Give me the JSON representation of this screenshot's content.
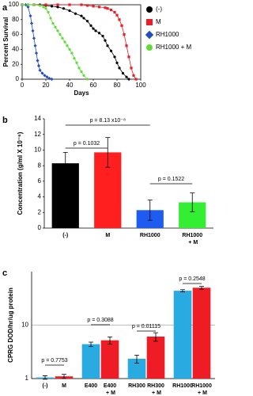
{
  "chart_data": [
    {
      "type": "line",
      "label": "a",
      "y_label": "Percent Survival",
      "x_label": "Days",
      "xlim": [
        0,
        100
      ],
      "xticks": [
        0,
        20,
        40,
        60,
        80,
        100
      ],
      "ylim": [
        0,
        100
      ],
      "yticks": [
        0,
        20,
        40,
        60,
        80,
        100
      ],
      "series": [
        {
          "name": "(-)",
          "color": "#000000",
          "marker": "circle",
          "x": [
            0,
            5,
            10,
            15,
            20,
            25,
            30,
            35,
            40,
            45,
            50,
            52,
            55,
            58,
            60,
            62,
            65,
            68,
            70,
            72,
            75,
            78,
            80,
            82,
            85,
            88,
            90
          ],
          "values": [
            100,
            100,
            100,
            100,
            99,
            98,
            97,
            95,
            92,
            88,
            85,
            82,
            78,
            72,
            68,
            65,
            62,
            58,
            52,
            45,
            38,
            30,
            22,
            15,
            8,
            3,
            0
          ]
        },
        {
          "name": "M",
          "color": "#ee1c24",
          "marker": "square",
          "x": [
            0,
            10,
            20,
            30,
            40,
            50,
            55,
            60,
            65,
            70,
            72,
            75,
            78,
            80,
            82,
            84,
            86,
            88,
            90,
            92,
            94,
            96
          ],
          "values": [
            100,
            100,
            100,
            100,
            100,
            100,
            99,
            98,
            97,
            96,
            95,
            93,
            90,
            86,
            80,
            72,
            60,
            45,
            30,
            15,
            5,
            0
          ]
        },
        {
          "name": "RH1000",
          "color": "#1f4fbf",
          "marker": "diamond",
          "x": [
            0,
            3,
            5,
            7,
            8,
            9,
            10,
            11,
            12,
            13,
            14,
            15,
            17,
            19,
            21,
            23,
            25
          ],
          "values": [
            100,
            100,
            97,
            85,
            75,
            65,
            55,
            45,
            35,
            25,
            18,
            12,
            8,
            5,
            3,
            1,
            0
          ]
        },
        {
          "name": "RH1000 + M",
          "color": "#5fdb3a",
          "marker": "circle",
          "x": [
            0,
            5,
            10,
            15,
            18,
            20,
            22,
            24,
            26,
            28,
            30,
            32,
            34,
            36,
            38,
            40,
            42,
            44,
            46,
            48,
            50,
            52,
            55
          ],
          "values": [
            100,
            100,
            100,
            99,
            97,
            95,
            90,
            82,
            75,
            70,
            65,
            60,
            55,
            50,
            45,
            40,
            35,
            28,
            22,
            15,
            10,
            5,
            0
          ]
        }
      ]
    },
    {
      "type": "bar",
      "label": "b",
      "y_label": "Concentration (g/ml X 10⁻⁶)",
      "categories": [
        "(-)",
        "M",
        "RH1000",
        "RH1000 + M"
      ],
      "values": [
        8.3,
        9.7,
        2.3,
        3.3
      ],
      "errors": [
        1.4,
        1.9,
        1.3,
        1.2
      ],
      "colors": [
        "#000000",
        "#ff1f1f",
        "#1e5bf0",
        "#33ee33"
      ],
      "ylim": [
        0,
        14
      ],
      "yticks": [
        0,
        2,
        4,
        6,
        8,
        10,
        12,
        14
      ],
      "annotations": [
        "p = 8.13 x10⁻⁸",
        "p = 0.1032",
        "p = 0.1522"
      ]
    },
    {
      "type": "bar",
      "label": "c",
      "y_label": "CPRG DOD/hr/ug protein",
      "log_scale": true,
      "grid": true,
      "categories": [
        "(-)",
        "M",
        "E400",
        "E400 + M",
        "RH300",
        "RH300 + M",
        "RH1000",
        "RH1000 + M"
      ],
      "values": [
        1.05,
        1.1,
        4.4,
        5.2,
        2.35,
        6.1,
        44,
        50
      ],
      "errors": [
        0.08,
        0.1,
        0.4,
        0.8,
        0.4,
        1.1,
        2,
        3
      ],
      "colors": [
        "#29abe2",
        "#ee1c24",
        "#29abe2",
        "#ee1c24",
        "#29abe2",
        "#ee1c24",
        "#29abe2",
        "#ee1c24"
      ],
      "ylim": [
        1,
        100
      ],
      "yticks": [
        1,
        10
      ],
      "annotations": [
        "p = 0.7753",
        "p = 0.3088",
        "p = 0.01115",
        "p = 0.2548"
      ]
    }
  ]
}
